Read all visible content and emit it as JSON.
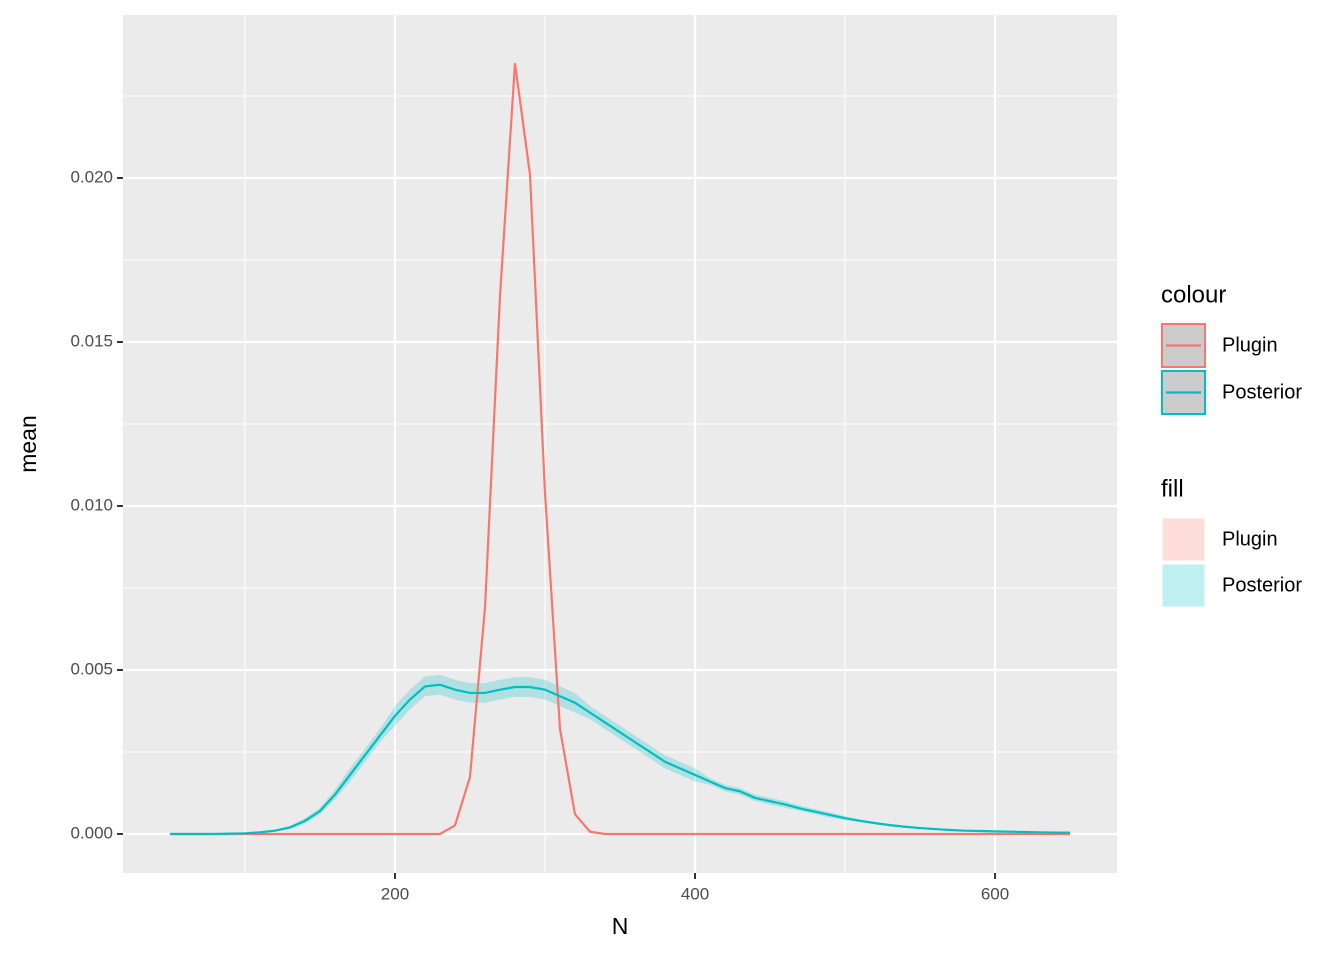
{
  "chart_data": {
    "type": "line",
    "xlabel": "N",
    "ylabel": "mean",
    "x": [
      50,
      60,
      70,
      80,
      90,
      100,
      110,
      120,
      130,
      140,
      150,
      160,
      170,
      180,
      190,
      200,
      210,
      220,
      230,
      240,
      250,
      260,
      270,
      280,
      290,
      300,
      310,
      320,
      330,
      340,
      350,
      360,
      370,
      380,
      390,
      400,
      410,
      420,
      430,
      440,
      450,
      460,
      470,
      480,
      490,
      500,
      510,
      520,
      530,
      540,
      550,
      560,
      570,
      580,
      590,
      600,
      610,
      620,
      630,
      640,
      650
    ],
    "series": [
      {
        "name": "Plugin",
        "color": "#F8766D",
        "values": [
          0,
          0,
          0,
          0,
          0,
          0,
          0,
          0,
          0,
          0,
          0,
          0,
          0,
          0,
          0,
          0,
          0,
          0,
          0,
          0.00026,
          0.00174,
          0.0069,
          0.0164,
          0.0235,
          0.0201,
          0.0104,
          0.0032,
          0.0006,
          7e-05,
          0,
          0,
          0,
          0,
          0,
          0,
          0,
          0,
          0,
          0,
          0,
          0,
          0,
          0,
          0,
          0,
          0,
          0,
          0,
          0,
          0,
          0,
          0,
          0,
          0,
          0,
          0,
          0,
          0,
          0,
          0,
          0
        ]
      },
      {
        "name": "Posterior",
        "color": "#00BFC4",
        "values": [
          0,
          0,
          0,
          0,
          1e-05,
          2e-05,
          5e-05,
          0.0001,
          0.0002,
          0.0004,
          0.0007,
          0.0012,
          0.0018,
          0.0024,
          0.003,
          0.0036,
          0.0041,
          0.0045,
          0.00455,
          0.0044,
          0.0043,
          0.0043,
          0.0044,
          0.00448,
          0.00448,
          0.0044,
          0.0042,
          0.004,
          0.0037,
          0.0034,
          0.0031,
          0.0028,
          0.0025,
          0.0022,
          0.002,
          0.0018,
          0.0016,
          0.0014,
          0.0013,
          0.0011,
          0.001,
          0.0009,
          0.00078,
          0.00068,
          0.00058,
          0.00048,
          0.0004,
          0.00033,
          0.00027,
          0.00022,
          0.00018,
          0.00015,
          0.00012,
          0.0001,
          9e-05,
          8e-05,
          7e-05,
          6e-05,
          5e-05,
          4e-05,
          4e-05
        ],
        "lower": [
          0,
          0,
          0,
          0,
          1e-05,
          2e-05,
          3e-05,
          7e-05,
          0.00015,
          0.00032,
          0.0006,
          0.00105,
          0.0016,
          0.0022,
          0.0028,
          0.0033,
          0.0038,
          0.0042,
          0.00425,
          0.0041,
          0.004,
          0.004,
          0.0041,
          0.00418,
          0.00418,
          0.0041,
          0.0039,
          0.0037,
          0.0035,
          0.0032,
          0.0029,
          0.0026,
          0.0023,
          0.002,
          0.0018,
          0.0016,
          0.0015,
          0.0013,
          0.0012,
          0.001,
          0.0009,
          0.0008,
          0.0007,
          0.0006,
          0.0005,
          0.00042,
          0.00036,
          0.0003,
          0.00024,
          0.00019,
          0.00015,
          0.00012,
          0.0001,
          8e-05,
          7e-05,
          6e-05,
          5e-05,
          4e-05,
          3e-05,
          2e-05,
          2e-05
        ],
        "upper": [
          0,
          0,
          0,
          0,
          1e-05,
          2e-05,
          7e-05,
          0.00013,
          0.00025,
          0.00048,
          0.0008,
          0.00135,
          0.002,
          0.0026,
          0.0032,
          0.0039,
          0.0044,
          0.0048,
          0.00485,
          0.0047,
          0.0046,
          0.0046,
          0.0047,
          0.00478,
          0.00478,
          0.0047,
          0.0045,
          0.0043,
          0.0039,
          0.0036,
          0.0033,
          0.003,
          0.0027,
          0.0024,
          0.0022,
          0.002,
          0.0017,
          0.0015,
          0.0014,
          0.0012,
          0.0011,
          0.001,
          0.00086,
          0.00076,
          0.00066,
          0.00054,
          0.00044,
          0.00036,
          0.0003,
          0.00025,
          0.00021,
          0.00018,
          0.00014,
          0.00012,
          0.00011,
          0.0001,
          9e-05,
          8e-05,
          7e-05,
          6e-05,
          6e-05
        ]
      }
    ],
    "xlim": [
      18.7,
      681.3
    ],
    "ylim": [
      -0.00119,
      0.02497
    ],
    "xticks": [
      200,
      400,
      600
    ],
    "xminor_ticks": [
      100,
      300,
      500
    ],
    "yticks": [
      {
        "value": 0,
        "label": "0.000"
      },
      {
        "value": 0.005,
        "label": "0.005"
      },
      {
        "value": 0.01,
        "label": "0.010"
      },
      {
        "value": 0.015,
        "label": "0.015"
      },
      {
        "value": 0.02,
        "label": "0.020"
      }
    ],
    "yminor_ticks": [
      0.0025,
      0.0075,
      0.0125,
      0.0175,
      0.0225
    ],
    "grid": true,
    "fill_alpha": 0.25,
    "legend_colour_title": "colour",
    "legend_fill_title": "fill",
    "legend": "right"
  }
}
